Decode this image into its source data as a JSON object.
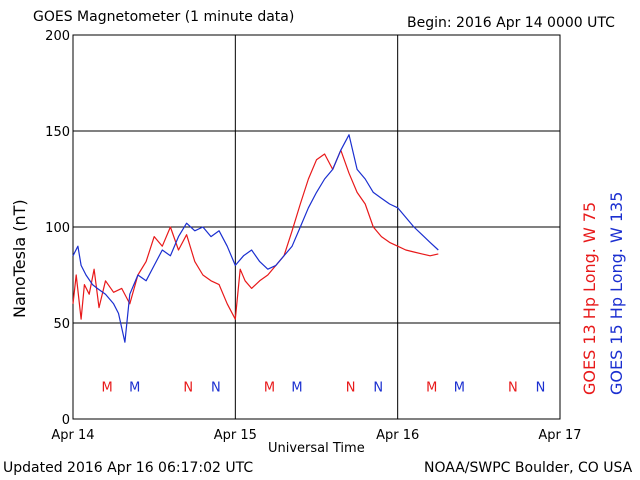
{
  "header": {
    "title": "GOES Magnetometer (1 minute data)",
    "begin": "Begin:  2016 Apr 14 0000 UTC"
  },
  "footer": {
    "updated": "Updated 2016 Apr 16 06:17:02 UTC",
    "credit": "NOAA/SWPC Boulder, CO USA"
  },
  "legend": {
    "goes13": "GOES 13 Hp  Long. W 75",
    "goes15": "GOES 15 Hp  Long. W 135"
  },
  "colors": {
    "goes13": "#e8191a",
    "goes15": "#1b2fd0",
    "grid": "#000000"
  },
  "chart_data": {
    "type": "line",
    "title": "GOES Magnetometer (1 minute data)",
    "xlabel": "Universal Time",
    "ylabel": "NanoTesla (nT)",
    "x_unit": "days since 2016 Apr 14 0000 UTC",
    "xlim": [
      0,
      3
    ],
    "ylim": [
      0,
      200
    ],
    "y_ticks": [
      "0",
      "50",
      "100",
      "150",
      "200"
    ],
    "x_ticks": [
      {
        "x": 0,
        "label": "Apr 14"
      },
      {
        "x": 1,
        "label": "Apr 15"
      },
      {
        "x": 2,
        "label": "Apr 16"
      },
      {
        "x": 3,
        "label": "Apr 17"
      }
    ],
    "grid": true,
    "series": [
      {
        "name": "GOES 13 Hp  Long. W 75",
        "color": "#e8191a",
        "x": [
          0,
          0.02,
          0.05,
          0.07,
          0.1,
          0.13,
          0.16,
          0.2,
          0.25,
          0.3,
          0.35,
          0.4,
          0.45,
          0.5,
          0.55,
          0.6,
          0.65,
          0.7,
          0.75,
          0.8,
          0.85,
          0.9,
          0.95,
          1.0,
          1.03,
          1.06,
          1.1,
          1.15,
          1.2,
          1.25,
          1.3,
          1.35,
          1.4,
          1.45,
          1.5,
          1.55,
          1.6,
          1.65,
          1.7,
          1.75,
          1.8,
          1.85,
          1.9,
          1.95,
          2.0,
          2.05,
          2.1,
          2.15,
          2.2,
          2.25
        ],
        "y": [
          60,
          75,
          52,
          70,
          65,
          78,
          58,
          72,
          66,
          68,
          60,
          75,
          82,
          95,
          90,
          100,
          88,
          96,
          82,
          75,
          72,
          70,
          60,
          52,
          78,
          72,
          68,
          72,
          75,
          80,
          85,
          98,
          112,
          125,
          135,
          138,
          130,
          140,
          128,
          118,
          112,
          100,
          95,
          92,
          90,
          88,
          87,
          86,
          85,
          86
        ]
      },
      {
        "name": "GOES 15 Hp  Long. W 135",
        "color": "#1b2fd0",
        "x": [
          0,
          0.03,
          0.05,
          0.08,
          0.12,
          0.15,
          0.2,
          0.25,
          0.28,
          0.32,
          0.35,
          0.4,
          0.45,
          0.5,
          0.55,
          0.6,
          0.65,
          0.7,
          0.75,
          0.8,
          0.85,
          0.9,
          0.95,
          1.0,
          1.05,
          1.1,
          1.15,
          1.2,
          1.25,
          1.3,
          1.35,
          1.4,
          1.45,
          1.5,
          1.55,
          1.6,
          1.65,
          1.7,
          1.75,
          1.8,
          1.85,
          1.9,
          1.95,
          2.0,
          2.05,
          2.1,
          2.15,
          2.2,
          2.25
        ],
        "y": [
          85,
          90,
          80,
          75,
          70,
          68,
          65,
          60,
          55,
          40,
          65,
          75,
          72,
          80,
          88,
          85,
          95,
          102,
          98,
          100,
          95,
          98,
          90,
          80,
          85,
          88,
          82,
          78,
          80,
          85,
          90,
          100,
          110,
          118,
          125,
          130,
          140,
          148,
          130,
          125,
          118,
          115,
          112,
          110,
          105,
          100,
          96,
          92,
          88
        ]
      }
    ],
    "markers": [
      {
        "label": "M",
        "series": "GOES 13 Hp  Long. W 75",
        "x": 0.21
      },
      {
        "label": "M",
        "series": "GOES 15 Hp  Long. W 135",
        "x": 0.38
      },
      {
        "label": "N",
        "series": "GOES 13 Hp  Long. W 75",
        "x": 0.71
      },
      {
        "label": "N",
        "series": "GOES 15 Hp  Long. W 135",
        "x": 0.88
      },
      {
        "label": "M",
        "series": "GOES 13 Hp  Long. W 75",
        "x": 1.21
      },
      {
        "label": "M",
        "series": "GOES 15 Hp  Long. W 135",
        "x": 1.38
      },
      {
        "label": "N",
        "series": "GOES 13 Hp  Long. W 75",
        "x": 1.71
      },
      {
        "label": "N",
        "series": "GOES 15 Hp  Long. W 135",
        "x": 1.88
      },
      {
        "label": "M",
        "series": "GOES 13 Hp  Long. W 75",
        "x": 2.21
      },
      {
        "label": "M",
        "series": "GOES 15 Hp  Long. W 135",
        "x": 2.38
      },
      {
        "label": "N",
        "series": "GOES 13 Hp  Long. W 75",
        "x": 2.71
      },
      {
        "label": "N",
        "series": "GOES 15 Hp  Long. W 135",
        "x": 2.88
      }
    ],
    "marker_y": 17
  }
}
